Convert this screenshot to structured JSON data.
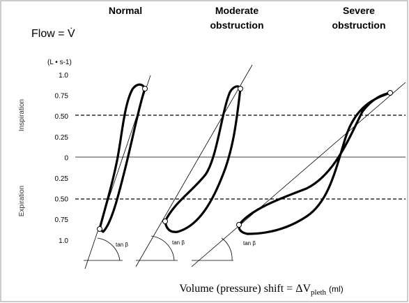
{
  "headers": [
    "Normal",
    [
      "Moderate",
      "obstruction"
    ],
    [
      "Severe",
      "obstruction"
    ]
  ],
  "flow_label": "Flow = V̇",
  "unit_label": "(L • s-1)",
  "y_axis": {
    "ticks": [
      "1.0",
      "0.75",
      "0.50",
      "0.25",
      "0",
      "0.25",
      "0.50",
      "0.75",
      "1.0"
    ],
    "inspiration": "Inspiration",
    "expiration": "Expiration"
  },
  "angle_label": "tan β",
  "x_label": {
    "main": "Volume (pressure) shift = ΔV",
    "sub": "pleth",
    "unit": "(ml)"
  }
}
